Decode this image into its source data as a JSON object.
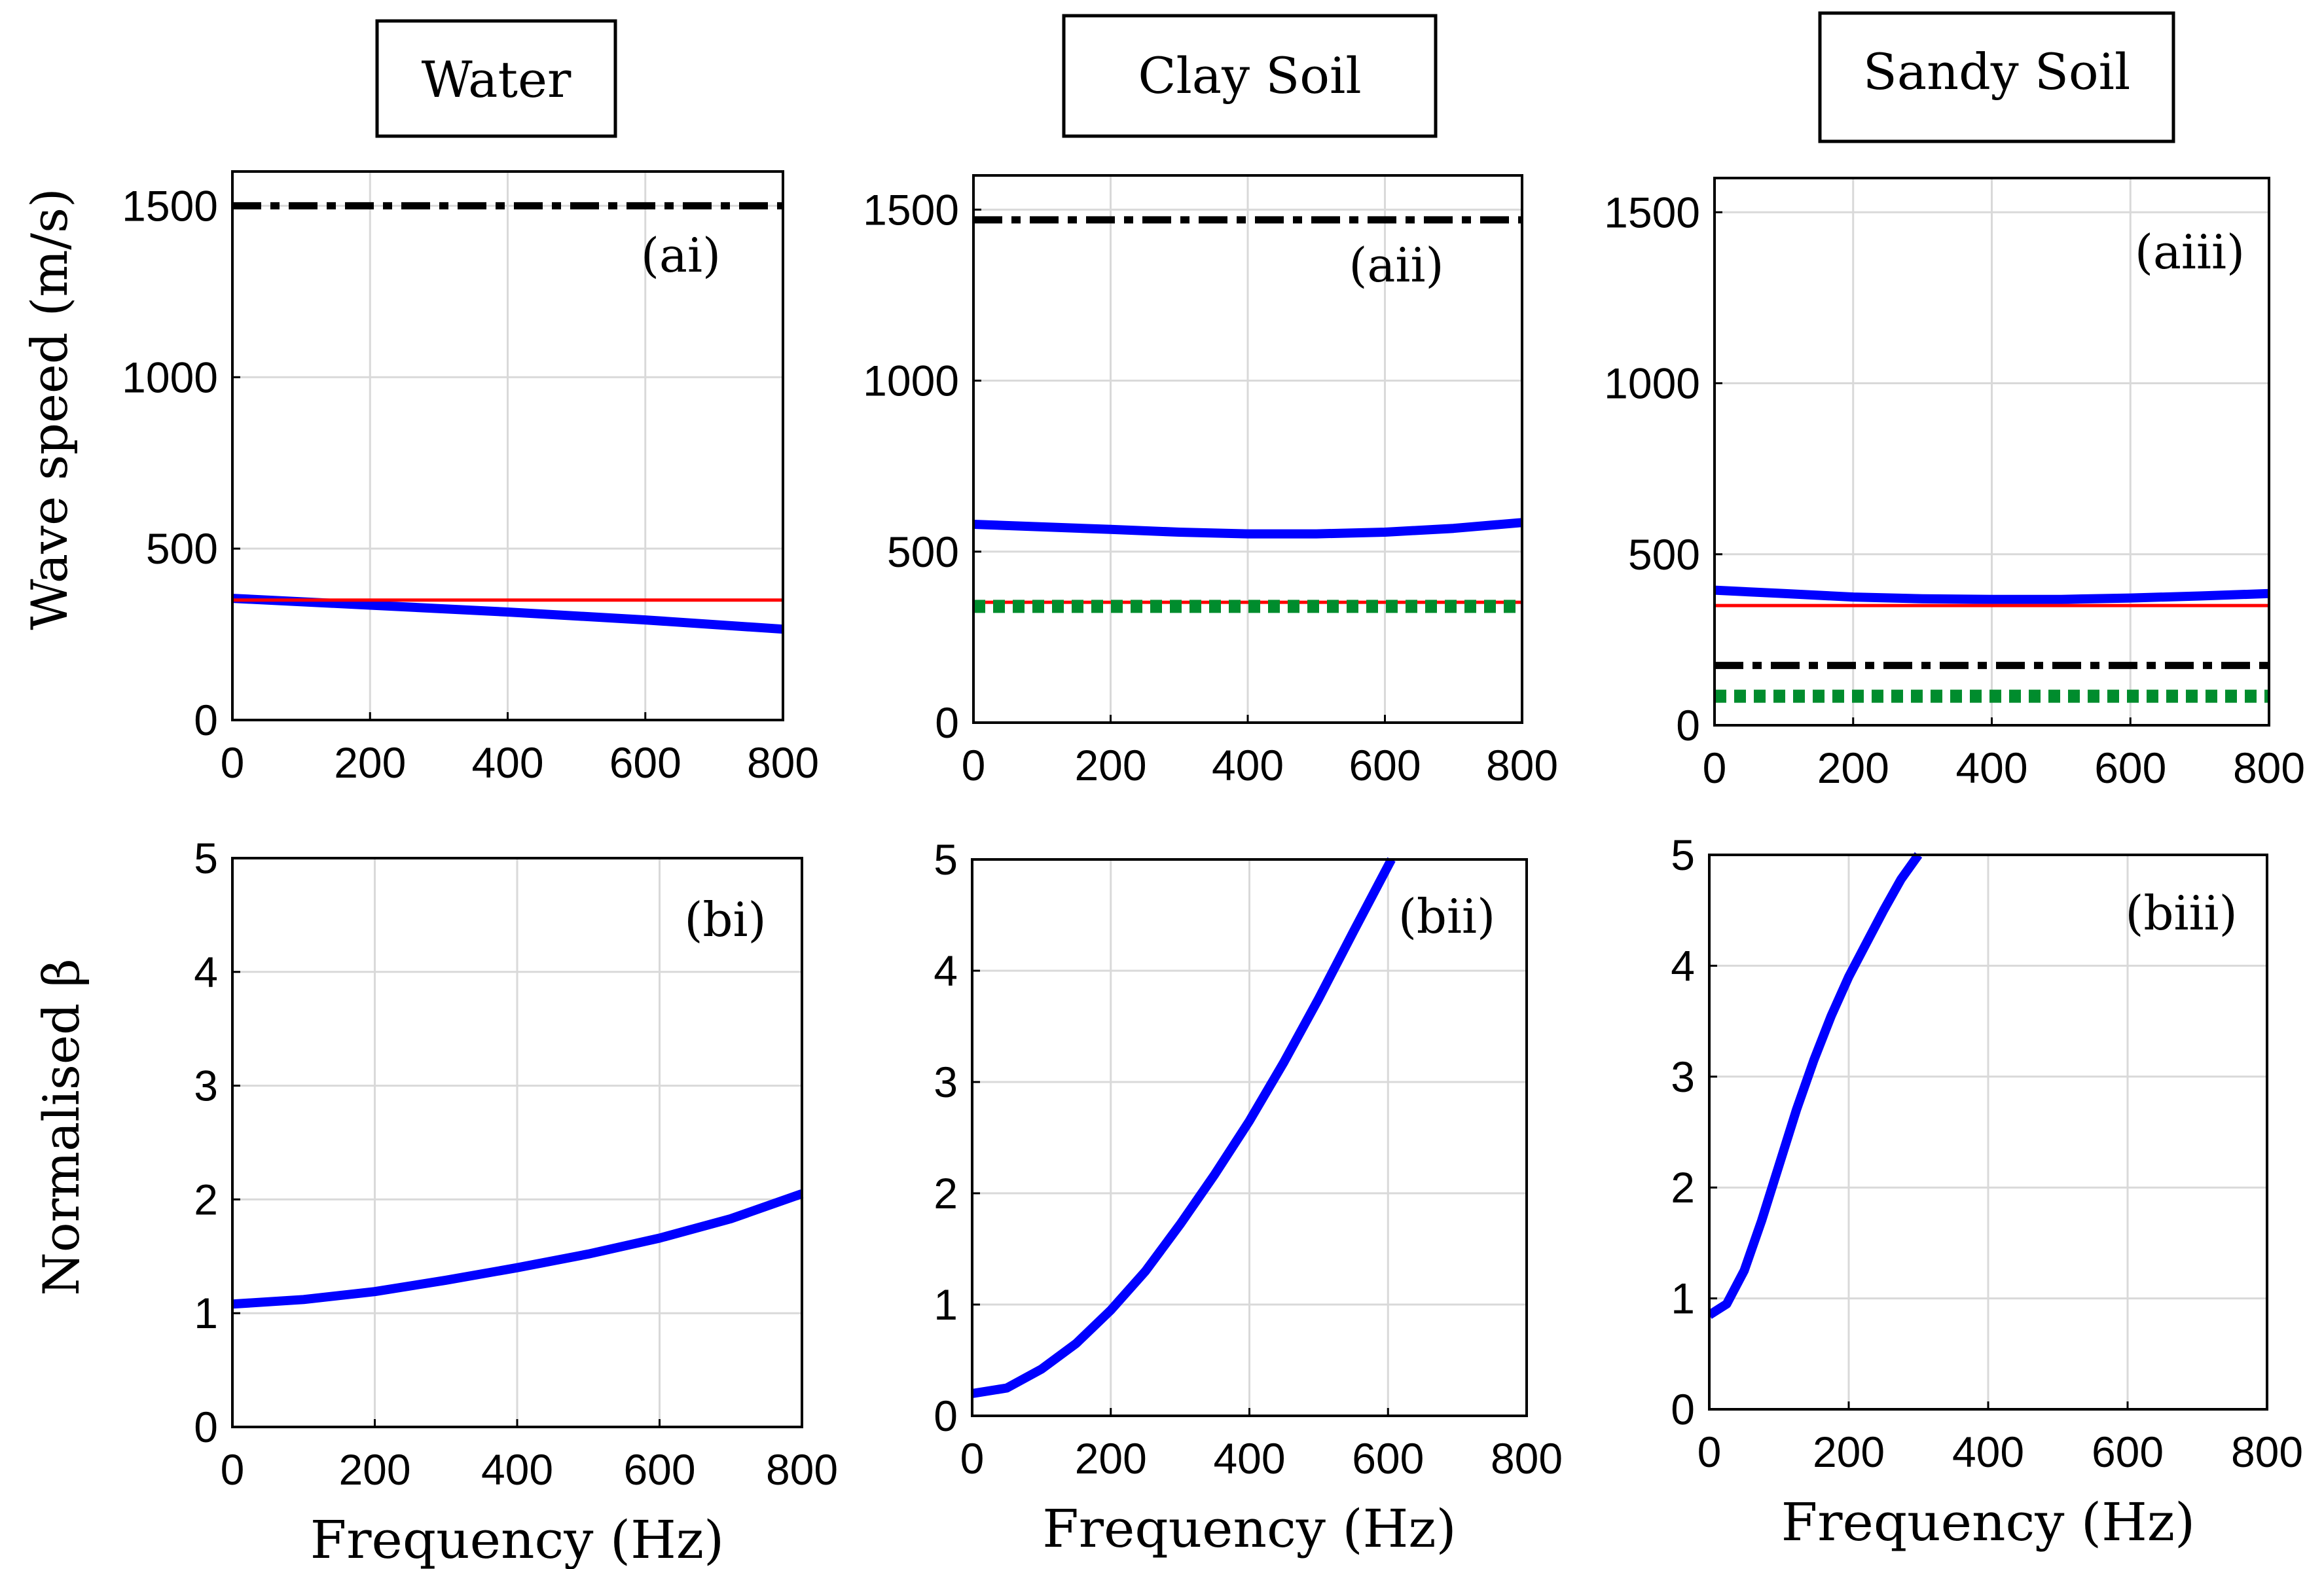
{
  "column_titles": [
    "Water",
    "Clay Soil",
    "Sandy Soil"
  ],
  "row_ylabels": [
    "Wave speed (m/s)",
    "Normalised β"
  ],
  "colors": {
    "blue": "#0000ff",
    "red": "#ff0000",
    "black": "#000000",
    "green": "#008c2d",
    "grid": "#d9d9d9"
  },
  "chart_data": [
    {
      "type": "line",
      "panel_label": "(ai)",
      "xlabel": "",
      "ylabel": "Wave speed (m/s)",
      "xlim": [
        0,
        800
      ],
      "ylim": [
        0,
        1600
      ],
      "xticks": [
        0,
        200,
        400,
        600,
        800
      ],
      "yticks": [
        0,
        500,
        1000,
        1500
      ],
      "grid": true,
      "series": [
        {
          "name": "blue",
          "style": "solid-thick",
          "color": "#0000ff",
          "x": [
            0,
            200,
            400,
            600,
            800
          ],
          "y": [
            355,
            335,
            315,
            292,
            265
          ]
        },
        {
          "name": "red",
          "style": "solid-thin",
          "color": "#ff0000",
          "x": [
            0,
            800
          ],
          "y": [
            350,
            350
          ]
        },
        {
          "name": "black",
          "style": "dashdot",
          "color": "#000000",
          "x": [
            0,
            800
          ],
          "y": [
            1500,
            1500
          ]
        }
      ]
    },
    {
      "type": "line",
      "panel_label": "(aii)",
      "xlabel": "",
      "ylabel": "",
      "xlim": [
        0,
        800
      ],
      "ylim": [
        0,
        1600
      ],
      "xticks": [
        0,
        200,
        400,
        600,
        800
      ],
      "yticks": [
        0,
        500,
        1000,
        1500
      ],
      "grid": true,
      "series": [
        {
          "name": "blue",
          "style": "solid-thick",
          "color": "#0000ff",
          "x": [
            0,
            200,
            300,
            400,
            500,
            600,
            700,
            800
          ],
          "y": [
            580,
            565,
            557,
            552,
            552,
            557,
            568,
            585
          ]
        },
        {
          "name": "red",
          "style": "solid-thin",
          "color": "#ff0000",
          "x": [
            0,
            800
          ],
          "y": [
            352,
            352
          ]
        },
        {
          "name": "green",
          "style": "dotted",
          "color": "#008c2d",
          "x": [
            0,
            800
          ],
          "y": [
            340,
            340
          ]
        },
        {
          "name": "black",
          "style": "dashdot",
          "color": "#000000",
          "x": [
            0,
            800
          ],
          "y": [
            1470,
            1470
          ]
        }
      ]
    },
    {
      "type": "line",
      "panel_label": "(aiii)",
      "xlabel": "",
      "ylabel": "",
      "xlim": [
        0,
        800
      ],
      "ylim": [
        0,
        1600
      ],
      "xticks": [
        0,
        200,
        400,
        600,
        800
      ],
      "yticks": [
        0,
        500,
        1000,
        1500
      ],
      "grid": true,
      "series": [
        {
          "name": "blue",
          "style": "solid-thick",
          "color": "#0000ff",
          "x": [
            0,
            100,
            200,
            300,
            400,
            500,
            600,
            700,
            800
          ],
          "y": [
            395,
            385,
            375,
            370,
            368,
            368,
            372,
            378,
            385
          ]
        },
        {
          "name": "red",
          "style": "solid-thin",
          "color": "#ff0000",
          "x": [
            0,
            800
          ],
          "y": [
            350,
            350
          ]
        },
        {
          "name": "black",
          "style": "dashdot",
          "color": "#000000",
          "x": [
            0,
            800
          ],
          "y": [
            175,
            175
          ]
        },
        {
          "name": "green",
          "style": "dotted",
          "color": "#008c2d",
          "x": [
            0,
            800
          ],
          "y": [
            85,
            85
          ]
        }
      ]
    },
    {
      "type": "line",
      "panel_label": "(bi)",
      "xlabel": "Frequency (Hz)",
      "ylabel": "Normalised β",
      "xlim": [
        0,
        800
      ],
      "ylim": [
        0,
        5
      ],
      "xticks": [
        0,
        200,
        400,
        600,
        800
      ],
      "yticks": [
        0,
        1,
        2,
        3,
        4,
        5
      ],
      "grid": true,
      "series": [
        {
          "name": "blue",
          "style": "solid-thick",
          "color": "#0000ff",
          "x": [
            0,
            100,
            200,
            300,
            400,
            500,
            600,
            700,
            800
          ],
          "y": [
            1.08,
            1.12,
            1.19,
            1.29,
            1.4,
            1.52,
            1.66,
            1.83,
            2.05
          ]
        }
      ]
    },
    {
      "type": "line",
      "panel_label": "(bii)",
      "xlabel": "Frequency (Hz)",
      "ylabel": "",
      "xlim": [
        0,
        800
      ],
      "ylim": [
        0,
        5
      ],
      "xticks": [
        0,
        200,
        400,
        600,
        800
      ],
      "yticks": [
        0,
        1,
        2,
        3,
        4,
        5
      ],
      "grid": true,
      "series": [
        {
          "name": "blue",
          "style": "solid-thick",
          "color": "#0000ff",
          "x": [
            0,
            50,
            100,
            150,
            200,
            250,
            300,
            350,
            400,
            450,
            500,
            550,
            605
          ],
          "y": [
            0.2,
            0.25,
            0.42,
            0.65,
            0.95,
            1.3,
            1.72,
            2.17,
            2.65,
            3.18,
            3.75,
            4.35,
            5.0
          ]
        }
      ]
    },
    {
      "type": "line",
      "panel_label": "(biii)",
      "xlabel": "Frequency (Hz)",
      "ylabel": "",
      "xlim": [
        0,
        800
      ],
      "ylim": [
        0,
        5
      ],
      "xticks": [
        0,
        200,
        400,
        600,
        800
      ],
      "yticks": [
        0,
        1,
        2,
        3,
        4,
        5
      ],
      "grid": true,
      "series": [
        {
          "name": "blue",
          "style": "solid-thick",
          "color": "#0000ff",
          "x": [
            0,
            25,
            50,
            75,
            100,
            125,
            150,
            175,
            200,
            225,
            250,
            275,
            300
          ],
          "y": [
            0.85,
            0.95,
            1.25,
            1.7,
            2.2,
            2.7,
            3.15,
            3.55,
            3.9,
            4.2,
            4.5,
            4.78,
            5.0
          ]
        }
      ]
    }
  ]
}
